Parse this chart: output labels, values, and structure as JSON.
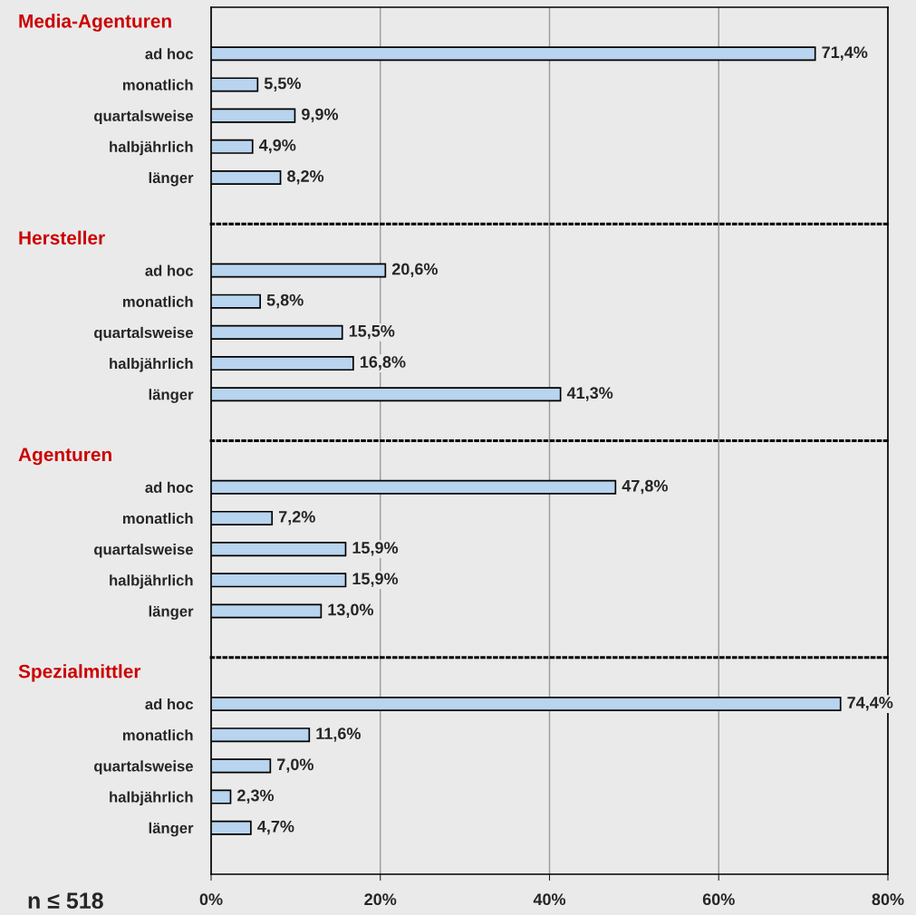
{
  "chart_data": [
    {
      "type": "bar",
      "orientation": "horizontal",
      "title": "Media-Agenturen",
      "categories": [
        "ad hoc",
        "monatlich",
        "quartalsweise",
        "halbjährlich",
        "länger"
      ],
      "values": [
        71.4,
        5.5,
        9.9,
        4.9,
        8.2
      ],
      "value_labels": [
        "71,4%",
        "5,5%",
        "9,9%",
        "4,9%",
        "8,2%"
      ],
      "color": "#b8d4ee",
      "xlim": [
        0,
        80
      ],
      "xticks": [
        0,
        20,
        40,
        60,
        80
      ],
      "grid": "x",
      "tick_labels": "y"
    },
    {
      "type": "bar",
      "orientation": "horizontal",
      "title": "Hersteller",
      "categories": [
        "ad hoc",
        "monatlich",
        "quartalsweise",
        "halbjährlich",
        "länger"
      ],
      "values": [
        20.6,
        5.8,
        15.5,
        16.8,
        41.3
      ],
      "value_labels": [
        "20,6%",
        "5,8%",
        "15,5%",
        "16,8%",
        "41,3%"
      ],
      "color": "#b8d4ee",
      "xlim": [
        0,
        80
      ],
      "xticks": [
        0,
        20,
        40,
        60,
        80
      ],
      "grid": "x",
      "tick_labels": "y"
    },
    {
      "type": "bar",
      "orientation": "horizontal",
      "title": "Agenturen",
      "categories": [
        "ad hoc",
        "monatlich",
        "quartalsweise",
        "halbjährlich",
        "länger"
      ],
      "values": [
        47.8,
        7.2,
        15.9,
        15.9,
        13.0
      ],
      "value_labels": [
        "47,8%",
        "7,2%",
        "15,9%",
        "15,9%",
        "13,0%"
      ],
      "color": "#b8d4ee",
      "xlim": [
        0,
        80
      ],
      "xticks": [
        0,
        20,
        40,
        60,
        80
      ],
      "grid": "x",
      "tick_labels": "y"
    },
    {
      "type": "bar",
      "orientation": "horizontal",
      "title": "Spezialmittler",
      "categories": [
        "ad hoc",
        "monatlich",
        "quartalsweise",
        "halbjährlich",
        "länger"
      ],
      "values": [
        74.4,
        11.6,
        7.0,
        2.3,
        4.7
      ],
      "value_labels": [
        "74,4%",
        "11,6%",
        "7,0%",
        "2,3%",
        "4,7%"
      ],
      "color": "#b8d4ee",
      "xlim": [
        0,
        80
      ],
      "xticks": [
        {
          "value": 0,
          "label": "0%"
        },
        {
          "value": 20,
          "label": "20%"
        },
        {
          "value": 40,
          "label": "40%"
        },
        {
          "value": 60,
          "label": "60%"
        },
        {
          "value": 80,
          "label": "80%"
        }
      ],
      "grid": "x",
      "annotations": [
        "n ≤ 518"
      ]
    }
  ]
}
